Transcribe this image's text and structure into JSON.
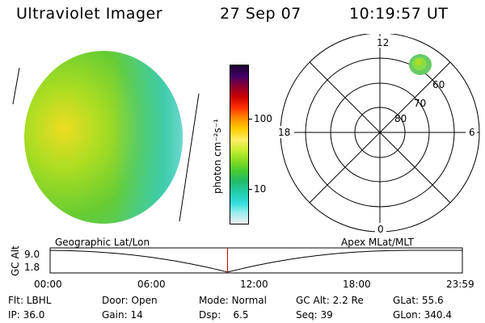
{
  "header": {
    "instrument": "Ultraviolet Imager",
    "date": "27 Sep 07",
    "time": "10:19:57 UT"
  },
  "colorbar": {
    "unit_label": "photon cm⁻²s⁻¹",
    "ticks": [
      "100",
      "10"
    ],
    "scale": "log",
    "colors": [
      "#1a0033",
      "#440066",
      "#880033",
      "#cc0000",
      "#ff3300",
      "#ff8800",
      "#ffcc00",
      "#ffee66",
      "#ccee33",
      "#88dd22",
      "#44cc33",
      "#22bb66",
      "#22ccaa",
      "#33dddd",
      "#99eeee",
      "#eeeeee"
    ]
  },
  "polar_plot": {
    "mlt_labels": {
      "top": "12",
      "left": "18",
      "right": "6",
      "bottom": "0"
    },
    "lat_labels": [
      "60",
      "70",
      "80"
    ]
  },
  "timeline": {
    "left_label": "Geographic Lat/Lon",
    "right_label": "Apex MLat/MLT",
    "y_axis_title": "GC Alt",
    "y_ticks": [
      "9.0",
      "1.8"
    ],
    "x_ticks": [
      "00:00",
      "06:00",
      "12:00",
      "18:00",
      "23:59"
    ],
    "marker_color": "#cc0000",
    "marker_time_hours": 10.33
  },
  "status": {
    "flt_label": "Flt:",
    "flt_value": "LBHL",
    "door_label": "Door:",
    "door_value": "Open",
    "mode_label": "Mode:",
    "mode_value": "Normal",
    "gcalt_label": "GC Alt:",
    "gcalt_value": "2.2 Re",
    "glat_label": "GLat:",
    "glat_value": "55.6",
    "ip_label": "IP:",
    "ip_value": "36.0",
    "gain_label": "Gain:",
    "gain_value": "14",
    "dsp_label": "Dsp:",
    "dsp_value": "6.5",
    "seq_label": "Seq:",
    "seq_value": "39",
    "glon_label": "GLon:",
    "glon_value": "340.4"
  }
}
